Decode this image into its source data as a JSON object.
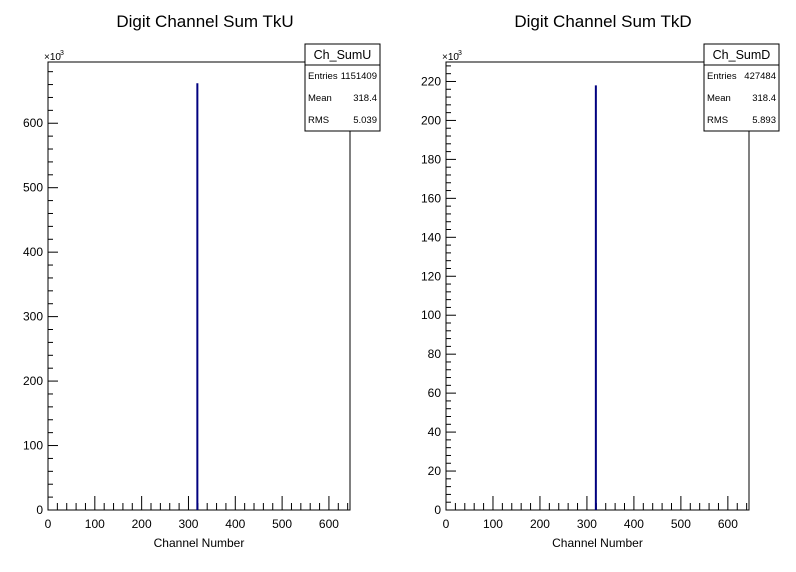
{
  "chart_data": [
    {
      "type": "bar",
      "title": "Digit Channel Sum TkU",
      "xlabel": "Channel Number",
      "ylabel": "",
      "xlim": [
        0,
        645
      ],
      "ylim": [
        0,
        695
      ],
      "xticks": [
        "0",
        "100",
        "200",
        "300",
        "400",
        "500",
        "600"
      ],
      "yticks": [
        "0",
        "100",
        "200",
        "300",
        "400",
        "500",
        "600"
      ],
      "y_multiplier": "×10",
      "y_multiplier_exp": "3",
      "bars": [
        {
          "x": 319,
          "value": 662
        }
      ],
      "stats": {
        "name": "Ch_SumU",
        "entries_label": "Entries",
        "entries": "1151409",
        "mean_label": "Mean",
        "mean": "318.4",
        "rms_label": "RMS",
        "rms": "5.039"
      },
      "color": "#00007f"
    },
    {
      "type": "bar",
      "title": "Digit Channel Sum TkD",
      "xlabel": "Channel Number",
      "ylabel": "",
      "xlim": [
        0,
        645
      ],
      "ylim": [
        0,
        230
      ],
      "xticks": [
        "0",
        "100",
        "200",
        "300",
        "400",
        "500",
        "600"
      ],
      "yticks": [
        "0",
        "20",
        "40",
        "60",
        "80",
        "100",
        "120",
        "140",
        "160",
        "180",
        "200",
        "220"
      ],
      "y_multiplier": "×10",
      "y_multiplier_exp": "3",
      "bars": [
        {
          "x": 319,
          "value": 218
        }
      ],
      "stats": {
        "name": "Ch_SumD",
        "entries_label": "Entries",
        "entries": "427484",
        "mean_label": "Mean",
        "mean": "318.4",
        "rms_label": "RMS",
        "rms": "5.893"
      },
      "color": "#00007f"
    }
  ]
}
